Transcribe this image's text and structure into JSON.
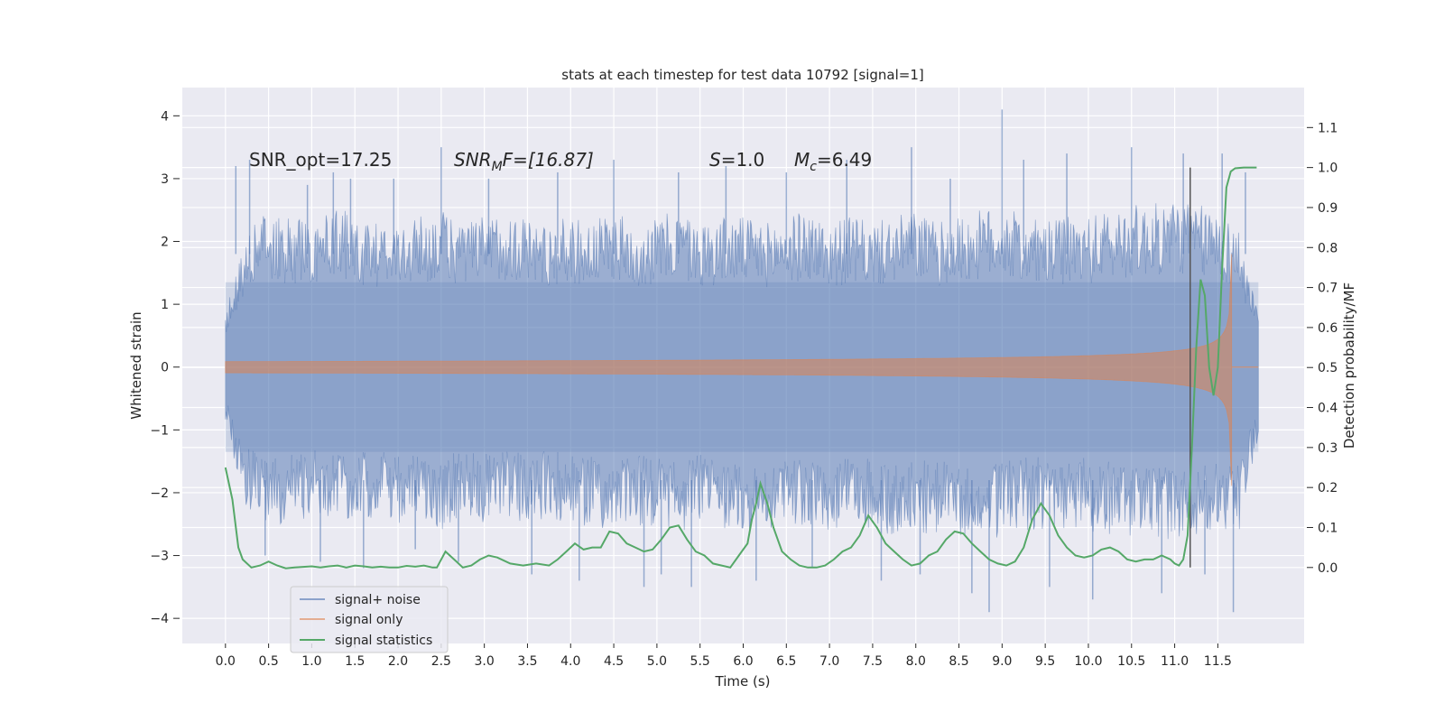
{
  "chart_data": {
    "type": "line",
    "title": "stats at each timestep for test data 10792 [signal=1]",
    "xlabel": "Time (s)",
    "ylabel": "Whitened strain",
    "y2label": "Detection probability/MF",
    "xlim": [
      -0.5,
      12.5
    ],
    "ylim": [
      -4.4,
      4.45
    ],
    "y2lim": [
      -0.19,
      1.2
    ],
    "xticks": [
      0.0,
      0.5,
      1.0,
      1.5,
      2.0,
      2.5,
      3.0,
      3.5,
      4.0,
      4.5,
      5.0,
      5.5,
      6.0,
      6.5,
      7.0,
      7.5,
      8.0,
      8.5,
      9.0,
      9.5,
      10.0,
      10.5,
      11.0,
      11.5
    ],
    "xtick_labels": [
      "0.0",
      "0.5",
      "1.0",
      "1.5",
      "2.0",
      "2.5",
      "3.0",
      "3.5",
      "4.0",
      "4.5",
      "5.0",
      "5.5",
      "6.0",
      "6.5",
      "7.0",
      "7.5",
      "8.0",
      "8.5",
      "9.0",
      "9.5",
      "10.0",
      "10.5",
      "11.0",
      "11.5"
    ],
    "yticks": [
      4,
      3,
      2,
      1,
      0,
      -1,
      -2,
      -3,
      -4
    ],
    "ytick_labels": [
      "4",
      "3",
      "2",
      "1",
      "0",
      "−1",
      "−2",
      "−3",
      "−4"
    ],
    "y2ticks": [
      1.1,
      1.0,
      0.9,
      0.8,
      0.7,
      0.6,
      0.5,
      0.4,
      0.3,
      0.2,
      0.1,
      0.0
    ],
    "y2tick_labels": [
      "1.1",
      "1.0",
      "0.9",
      "0.8",
      "0.7",
      "0.6",
      "0.5",
      "0.4",
      "0.3",
      "0.2",
      "0.1",
      "0.0"
    ],
    "vline_x": 11.18,
    "annotations": {
      "snr_opt": "SNR_opt=17.25",
      "snr_mf_main": "SNR",
      "snr_mf_sub": "M",
      "snr_mf_rest": "F=[16.87]",
      "s_main": "S",
      "s_rest": "=1.0",
      "mc_main": "M",
      "mc_sub": "c",
      "mc_rest": "=6.49"
    },
    "noise_series": {
      "name": "signal+ noise",
      "color": "#4c72b0",
      "x_range": [
        0.0,
        11.97
      ],
      "upper_envelope": [
        [
          0.0,
          0.9
        ],
        [
          0.25,
          2.3
        ],
        [
          0.5,
          2.5
        ],
        [
          0.75,
          2.4
        ],
        [
          1.0,
          2.3
        ],
        [
          1.25,
          2.6
        ],
        [
          1.5,
          2.4
        ],
        [
          1.75,
          2.3
        ],
        [
          2.0,
          2.3
        ],
        [
          2.25,
          2.4
        ],
        [
          2.5,
          2.5
        ],
        [
          2.75,
          2.3
        ],
        [
          3.0,
          2.4
        ],
        [
          3.25,
          2.5
        ],
        [
          3.5,
          2.4
        ],
        [
          3.75,
          2.3
        ],
        [
          4.0,
          2.4
        ],
        [
          4.25,
          2.3
        ],
        [
          4.5,
          2.5
        ],
        [
          4.75,
          2.3
        ],
        [
          5.0,
          2.4
        ],
        [
          5.25,
          2.5
        ],
        [
          5.5,
          2.3
        ],
        [
          5.75,
          2.4
        ],
        [
          6.0,
          2.4
        ],
        [
          6.25,
          2.3
        ],
        [
          6.5,
          2.4
        ],
        [
          6.75,
          2.5
        ],
        [
          7.0,
          2.3
        ],
        [
          7.25,
          2.4
        ],
        [
          7.5,
          2.3
        ],
        [
          7.75,
          2.4
        ],
        [
          8.0,
          2.5
        ],
        [
          8.25,
          2.3
        ],
        [
          8.5,
          2.4
        ],
        [
          8.75,
          2.5
        ],
        [
          9.0,
          2.6
        ],
        [
          9.25,
          2.4
        ],
        [
          9.5,
          2.3
        ],
        [
          9.75,
          2.4
        ],
        [
          10.0,
          2.4
        ],
        [
          10.25,
          2.5
        ],
        [
          10.5,
          2.6
        ],
        [
          10.75,
          2.6
        ],
        [
          11.0,
          2.7
        ],
        [
          11.25,
          2.6
        ],
        [
          11.5,
          2.5
        ],
        [
          11.75,
          2.2
        ],
        [
          11.97,
          0.8
        ]
      ],
      "lower_envelope": [
        [
          0.0,
          -0.9
        ],
        [
          0.25,
          -2.3
        ],
        [
          0.5,
          -2.5
        ],
        [
          0.75,
          -2.5
        ],
        [
          1.0,
          -2.4
        ],
        [
          1.25,
          -2.5
        ],
        [
          1.5,
          -2.4
        ],
        [
          1.75,
          -2.4
        ],
        [
          2.0,
          -2.5
        ],
        [
          2.25,
          -2.4
        ],
        [
          2.5,
          -2.6
        ],
        [
          2.75,
          -2.4
        ],
        [
          3.0,
          -2.5
        ],
        [
          3.25,
          -2.4
        ],
        [
          3.5,
          -2.5
        ],
        [
          3.75,
          -2.4
        ],
        [
          4.0,
          -2.5
        ],
        [
          4.25,
          -2.6
        ],
        [
          4.5,
          -2.7
        ],
        [
          4.75,
          -2.5
        ],
        [
          5.0,
          -2.6
        ],
        [
          5.25,
          -2.7
        ],
        [
          5.5,
          -2.5
        ],
        [
          5.75,
          -2.6
        ],
        [
          6.0,
          -2.7
        ],
        [
          6.25,
          -2.6
        ],
        [
          6.5,
          -2.5
        ],
        [
          6.75,
          -2.6
        ],
        [
          7.0,
          -2.6
        ],
        [
          7.25,
          -2.5
        ],
        [
          7.5,
          -2.6
        ],
        [
          7.75,
          -2.7
        ],
        [
          8.0,
          -2.6
        ],
        [
          8.25,
          -2.7
        ],
        [
          8.5,
          -2.8
        ],
        [
          8.75,
          -2.8
        ],
        [
          9.0,
          -2.7
        ],
        [
          9.25,
          -2.6
        ],
        [
          9.5,
          -2.6
        ],
        [
          9.75,
          -2.7
        ],
        [
          10.0,
          -2.6
        ],
        [
          10.25,
          -2.7
        ],
        [
          10.5,
          -2.7
        ],
        [
          10.75,
          -2.8
        ],
        [
          11.0,
          -2.8
        ],
        [
          11.25,
          -2.7
        ],
        [
          11.5,
          -2.7
        ],
        [
          11.75,
          -2.6
        ],
        [
          11.97,
          -1.2
        ]
      ],
      "spikes": [
        [
          0.12,
          3.2
        ],
        [
          0.28,
          3.3
        ],
        [
          0.46,
          -3.0
        ],
        [
          0.95,
          2.9
        ],
        [
          1.1,
          -3.1
        ],
        [
          1.25,
          3.1
        ],
        [
          1.45,
          3.0
        ],
        [
          1.6,
          -3.2
        ],
        [
          1.95,
          3.0
        ],
        [
          2.2,
          -2.9
        ],
        [
          2.5,
          3.5
        ],
        [
          2.7,
          -3.1
        ],
        [
          3.05,
          3.0
        ],
        [
          3.55,
          -3.3
        ],
        [
          3.85,
          3.1
        ],
        [
          4.1,
          -3.4
        ],
        [
          4.5,
          3.3
        ],
        [
          4.85,
          -3.5
        ],
        [
          5.05,
          -3.3
        ],
        [
          5.25,
          3.1
        ],
        [
          5.4,
          -3.5
        ],
        [
          5.8,
          3.2
        ],
        [
          6.15,
          -3.4
        ],
        [
          6.5,
          3.1
        ],
        [
          6.8,
          -3.2
        ],
        [
          7.2,
          3.3
        ],
        [
          7.6,
          -3.4
        ],
        [
          7.95,
          3.5
        ],
        [
          8.05,
          -3.3
        ],
        [
          8.4,
          3.0
        ],
        [
          8.65,
          -3.6
        ],
        [
          8.85,
          -3.9
        ],
        [
          9.0,
          4.1
        ],
        [
          9.25,
          3.3
        ],
        [
          9.55,
          -3.5
        ],
        [
          9.75,
          3.4
        ],
        [
          10.05,
          -3.7
        ],
        [
          10.5,
          3.5
        ],
        [
          10.85,
          -3.6
        ],
        [
          11.1,
          3.4
        ],
        [
          11.35,
          -3.3
        ],
        [
          11.55,
          3.4
        ],
        [
          11.68,
          -3.9
        ],
        [
          11.82,
          3.1
        ]
      ]
    },
    "signal_series": {
      "name": "signal only",
      "color": "#dd8452",
      "t0": 0.0,
      "t_merger": 11.66,
      "t_end": 11.97,
      "merger_amplitude": 1.8,
      "merger_min": -2.0
    },
    "stat_series": {
      "name": "signal statistics",
      "color": "#55a868",
      "axis": "y2",
      "points": [
        [
          0.0,
          0.25
        ],
        [
          0.08,
          0.17
        ],
        [
          0.15,
          0.05
        ],
        [
          0.2,
          0.02
        ],
        [
          0.3,
          0.0
        ],
        [
          0.4,
          0.005
        ],
        [
          0.5,
          0.015
        ],
        [
          0.6,
          0.005
        ],
        [
          0.7,
          -0.002
        ],
        [
          0.8,
          0.0
        ],
        [
          1.0,
          0.003
        ],
        [
          1.1,
          0.0
        ],
        [
          1.2,
          0.003
        ],
        [
          1.3,
          0.005
        ],
        [
          1.4,
          0.0
        ],
        [
          1.5,
          0.005
        ],
        [
          1.6,
          0.003
        ],
        [
          1.7,
          0.0
        ],
        [
          1.8,
          0.002
        ],
        [
          1.9,
          0.0
        ],
        [
          2.0,
          0.0
        ],
        [
          2.1,
          0.004
        ],
        [
          2.2,
          0.002
        ],
        [
          2.3,
          0.005
        ],
        [
          2.4,
          0.0
        ],
        [
          2.45,
          0.0
        ],
        [
          2.55,
          0.04
        ],
        [
          2.65,
          0.02
        ],
        [
          2.75,
          0.0
        ],
        [
          2.85,
          0.005
        ],
        [
          2.95,
          0.02
        ],
        [
          3.05,
          0.03
        ],
        [
          3.15,
          0.025
        ],
        [
          3.3,
          0.01
        ],
        [
          3.45,
          0.005
        ],
        [
          3.6,
          0.01
        ],
        [
          3.75,
          0.005
        ],
        [
          3.85,
          0.02
        ],
        [
          3.95,
          0.04
        ],
        [
          4.05,
          0.06
        ],
        [
          4.15,
          0.045
        ],
        [
          4.25,
          0.05
        ],
        [
          4.35,
          0.05
        ],
        [
          4.45,
          0.09
        ],
        [
          4.55,
          0.085
        ],
        [
          4.65,
          0.06
        ],
        [
          4.75,
          0.05
        ],
        [
          4.85,
          0.04
        ],
        [
          4.95,
          0.045
        ],
        [
          5.05,
          0.07
        ],
        [
          5.15,
          0.1
        ],
        [
          5.25,
          0.105
        ],
        [
          5.35,
          0.07
        ],
        [
          5.45,
          0.04
        ],
        [
          5.55,
          0.03
        ],
        [
          5.65,
          0.01
        ],
        [
          5.75,
          0.005
        ],
        [
          5.85,
          0.0
        ],
        [
          5.95,
          0.03
        ],
        [
          6.05,
          0.06
        ],
        [
          6.1,
          0.12
        ],
        [
          6.15,
          0.16
        ],
        [
          6.2,
          0.21
        ],
        [
          6.28,
          0.16
        ],
        [
          6.35,
          0.1
        ],
        [
          6.45,
          0.04
        ],
        [
          6.55,
          0.02
        ],
        [
          6.65,
          0.005
        ],
        [
          6.75,
          0.0
        ],
        [
          6.85,
          0.0
        ],
        [
          6.95,
          0.005
        ],
        [
          7.05,
          0.02
        ],
        [
          7.15,
          0.04
        ],
        [
          7.25,
          0.05
        ],
        [
          7.35,
          0.08
        ],
        [
          7.45,
          0.13
        ],
        [
          7.55,
          0.1
        ],
        [
          7.65,
          0.06
        ],
        [
          7.75,
          0.04
        ],
        [
          7.85,
          0.02
        ],
        [
          7.95,
          0.005
        ],
        [
          8.05,
          0.01
        ],
        [
          8.15,
          0.03
        ],
        [
          8.25,
          0.04
        ],
        [
          8.35,
          0.07
        ],
        [
          8.45,
          0.09
        ],
        [
          8.55,
          0.085
        ],
        [
          8.65,
          0.06
        ],
        [
          8.75,
          0.04
        ],
        [
          8.85,
          0.02
        ],
        [
          8.95,
          0.01
        ],
        [
          9.05,
          0.005
        ],
        [
          9.15,
          0.015
        ],
        [
          9.25,
          0.05
        ],
        [
          9.35,
          0.12
        ],
        [
          9.45,
          0.16
        ],
        [
          9.55,
          0.13
        ],
        [
          9.65,
          0.08
        ],
        [
          9.75,
          0.05
        ],
        [
          9.85,
          0.03
        ],
        [
          9.95,
          0.025
        ],
        [
          10.05,
          0.03
        ],
        [
          10.15,
          0.045
        ],
        [
          10.25,
          0.05
        ],
        [
          10.35,
          0.04
        ],
        [
          10.45,
          0.02
        ],
        [
          10.55,
          0.015
        ],
        [
          10.65,
          0.02
        ],
        [
          10.75,
          0.02
        ],
        [
          10.85,
          0.03
        ],
        [
          10.95,
          0.02
        ],
        [
          11.0,
          0.01
        ],
        [
          11.05,
          0.005
        ],
        [
          11.1,
          0.02
        ],
        [
          11.15,
          0.08
        ],
        [
          11.2,
          0.3
        ],
        [
          11.25,
          0.55
        ],
        [
          11.3,
          0.72
        ],
        [
          11.35,
          0.68
        ],
        [
          11.4,
          0.5
        ],
        [
          11.45,
          0.43
        ],
        [
          11.5,
          0.5
        ],
        [
          11.55,
          0.75
        ],
        [
          11.6,
          0.95
        ],
        [
          11.65,
          0.99
        ],
        [
          11.7,
          0.998
        ],
        [
          11.8,
          1.0
        ],
        [
          11.95,
          1.0
        ]
      ]
    },
    "legend": {
      "position": "lower-left",
      "entries": [
        {
          "label": "signal+ noise",
          "color": "#4c72b0"
        },
        {
          "label": "signal only",
          "color": "#dd8452"
        },
        {
          "label": "signal statistics",
          "color": "#55a868"
        }
      ]
    },
    "style": {
      "plot_bg": "#eaeaf2",
      "grid_color": "#ffffff",
      "vline_color": "#555555"
    }
  }
}
